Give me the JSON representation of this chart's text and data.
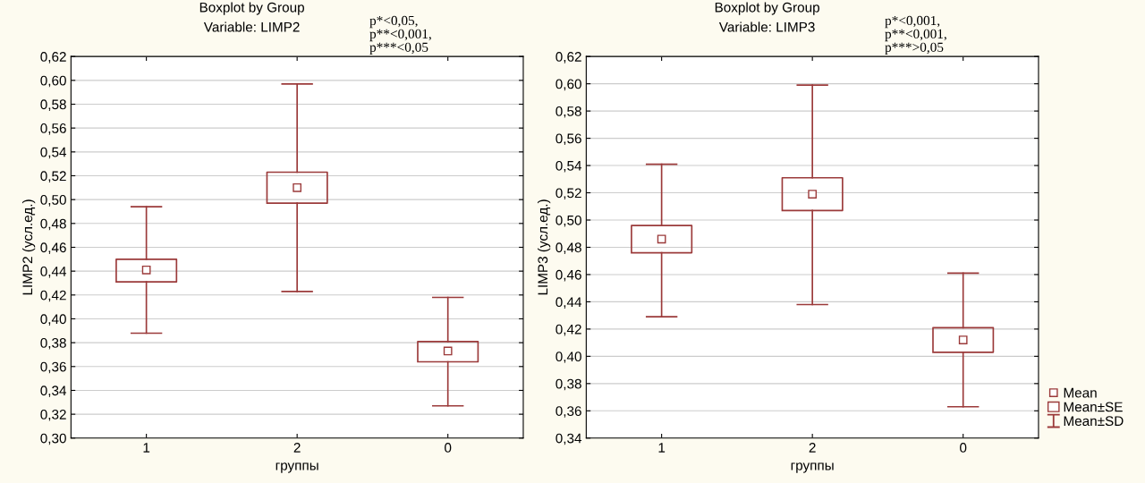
{
  "chart_data": [
    {
      "type": "box",
      "title": "Boxplot by Group",
      "subtitle": "Variable: LIMP2",
      "xlabel": "группы",
      "ylabel": "LIMP2 (усл.ед.)",
      "categories": [
        "1",
        "2",
        "0"
      ],
      "color": "#9b3a3a",
      "boxes": [
        {
          "low": 0.388,
          "q1": 0.431,
          "q3": 0.45,
          "high": 0.494,
          "mean": 0.441
        },
        {
          "low": 0.423,
          "q1": 0.497,
          "q3": 0.523,
          "high": 0.597,
          "mean": 0.51
        },
        {
          "low": 0.327,
          "q1": 0.364,
          "q3": 0.381,
          "high": 0.418,
          "mean": 0.373
        }
      ],
      "ylim": [
        0.3,
        0.62
      ],
      "yticks": [
        {
          "value": 0.3,
          "label": "0,30"
        },
        {
          "value": 0.32,
          "label": "0,32"
        },
        {
          "value": 0.34,
          "label": "0,34"
        },
        {
          "value": 0.36,
          "label": "0,36"
        },
        {
          "value": 0.38,
          "label": "0,38"
        },
        {
          "value": 0.4,
          "label": "0,40"
        },
        {
          "value": 0.42,
          "label": "0,42"
        },
        {
          "value": 0.44,
          "label": "0,44"
        },
        {
          "value": 0.46,
          "label": "0,46"
        },
        {
          "value": 0.48,
          "label": "0,48"
        },
        {
          "value": 0.5,
          "label": "0,50"
        },
        {
          "value": 0.52,
          "label": "0,52"
        },
        {
          "value": 0.54,
          "label": "0,54"
        },
        {
          "value": 0.56,
          "label": "0,56"
        },
        {
          "value": 0.58,
          "label": "0,58"
        },
        {
          "value": 0.6,
          "label": "0,60"
        },
        {
          "value": 0.62,
          "label": "0,62"
        }
      ],
      "grid": "y",
      "annotations": [
        "p*<0,05,\np**<0,001,\np***<0,05"
      ]
    },
    {
      "type": "box",
      "title": "Boxplot by Group",
      "subtitle": "Variable: LIMP3",
      "xlabel": "группы",
      "ylabel": "LIMP3 (усл.ед.)",
      "categories": [
        "1",
        "2",
        "0"
      ],
      "color": "#9b3a3a",
      "boxes": [
        {
          "low": 0.429,
          "q1": 0.476,
          "q3": 0.496,
          "high": 0.541,
          "mean": 0.486
        },
        {
          "low": 0.438,
          "q1": 0.507,
          "q3": 0.531,
          "high": 0.599,
          "mean": 0.519
        },
        {
          "low": 0.363,
          "q1": 0.403,
          "q3": 0.421,
          "high": 0.461,
          "mean": 0.412
        }
      ],
      "ylim": [
        0.34,
        0.62
      ],
      "yticks": [
        {
          "value": 0.34,
          "label": "0,34"
        },
        {
          "value": 0.36,
          "label": "0,36"
        },
        {
          "value": 0.38,
          "label": "0,38"
        },
        {
          "value": 0.4,
          "label": "0,40"
        },
        {
          "value": 0.42,
          "label": "0,42"
        },
        {
          "value": 0.44,
          "label": "0,44"
        },
        {
          "value": 0.46,
          "label": "0,46"
        },
        {
          "value": 0.48,
          "label": "0,48"
        },
        {
          "value": 0.5,
          "label": "0,50"
        },
        {
          "value": 0.52,
          "label": "0,52"
        },
        {
          "value": 0.54,
          "label": "0,54"
        },
        {
          "value": 0.56,
          "label": "0,56"
        },
        {
          "value": 0.58,
          "label": "0,58"
        },
        {
          "value": 0.6,
          "label": "0,60"
        },
        {
          "value": 0.62,
          "label": "0,62"
        }
      ],
      "grid": "y",
      "annotations": [
        "p*<0,001,\np**<0,001,\np***>0,05",
        "Mean",
        "Mean±SE",
        "Mean±SD"
      ]
    }
  ]
}
